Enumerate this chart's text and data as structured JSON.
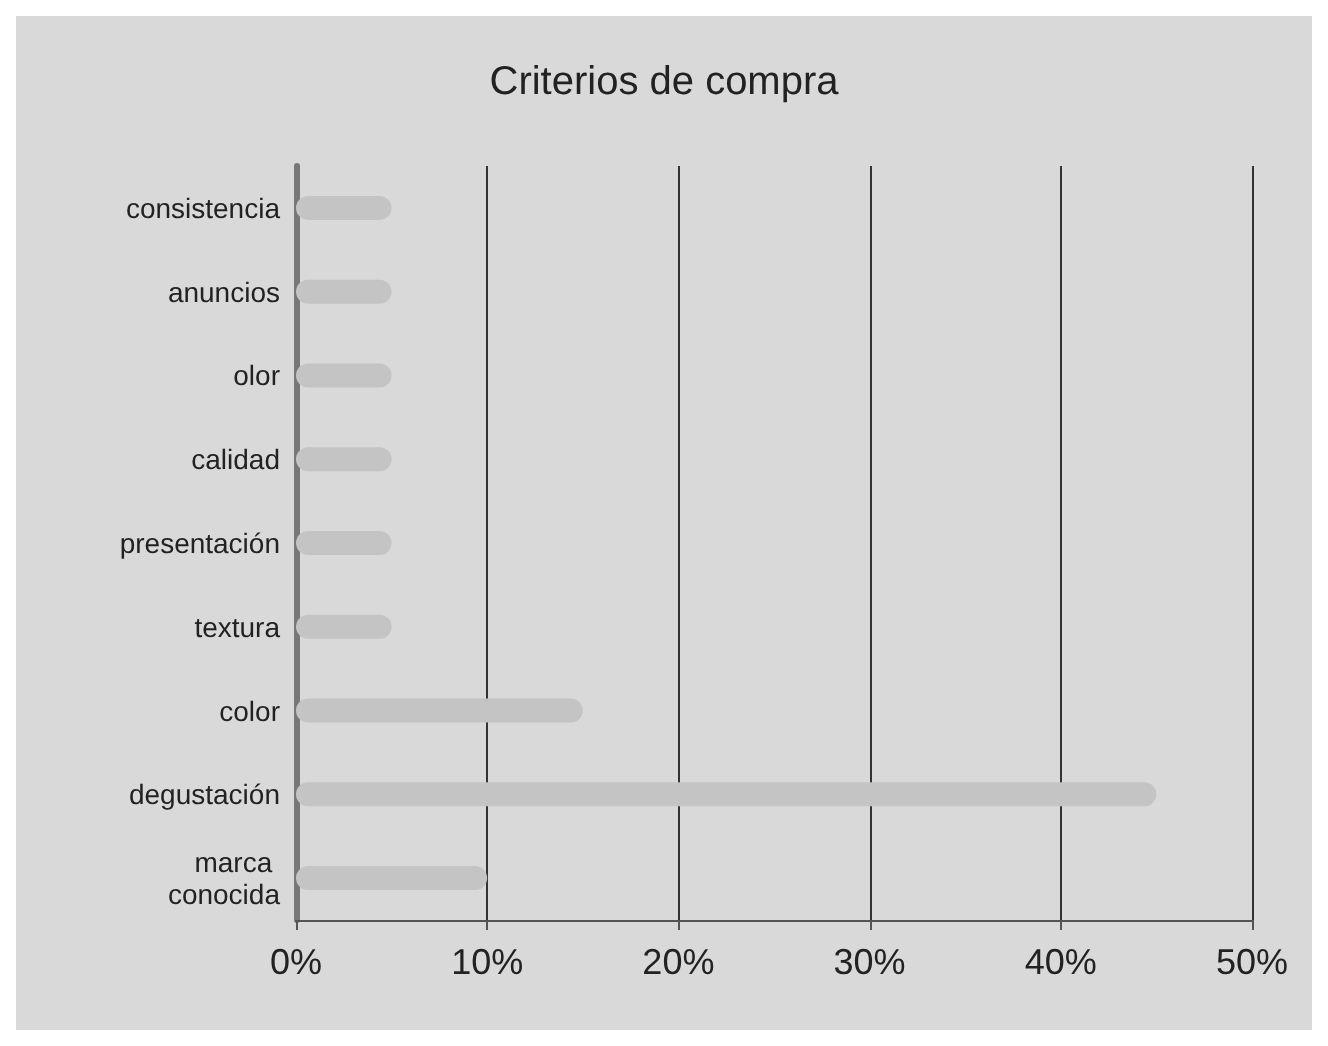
{
  "chart_data": {
    "type": "bar",
    "orientation": "horizontal",
    "title": "Criterios de compra",
    "categories": [
      "consistencia",
      "anuncios",
      "olor",
      "calidad",
      "presentación",
      "textura",
      "color",
      "degustación",
      "marca conocida"
    ],
    "values": [
      5,
      5,
      5,
      5,
      5,
      5,
      15,
      45,
      10
    ],
    "color": "#c4c4c4",
    "xlim": [
      0,
      50
    ],
    "xticks": [
      {
        "value": 0,
        "label": "0%"
      },
      {
        "value": 10,
        "label": "10%"
      },
      {
        "value": 20,
        "label": "20%"
      },
      {
        "value": 30,
        "label": "30%"
      },
      {
        "value": 40,
        "label": "40%"
      },
      {
        "value": 50,
        "label": "50%"
      }
    ],
    "grid": "x"
  }
}
